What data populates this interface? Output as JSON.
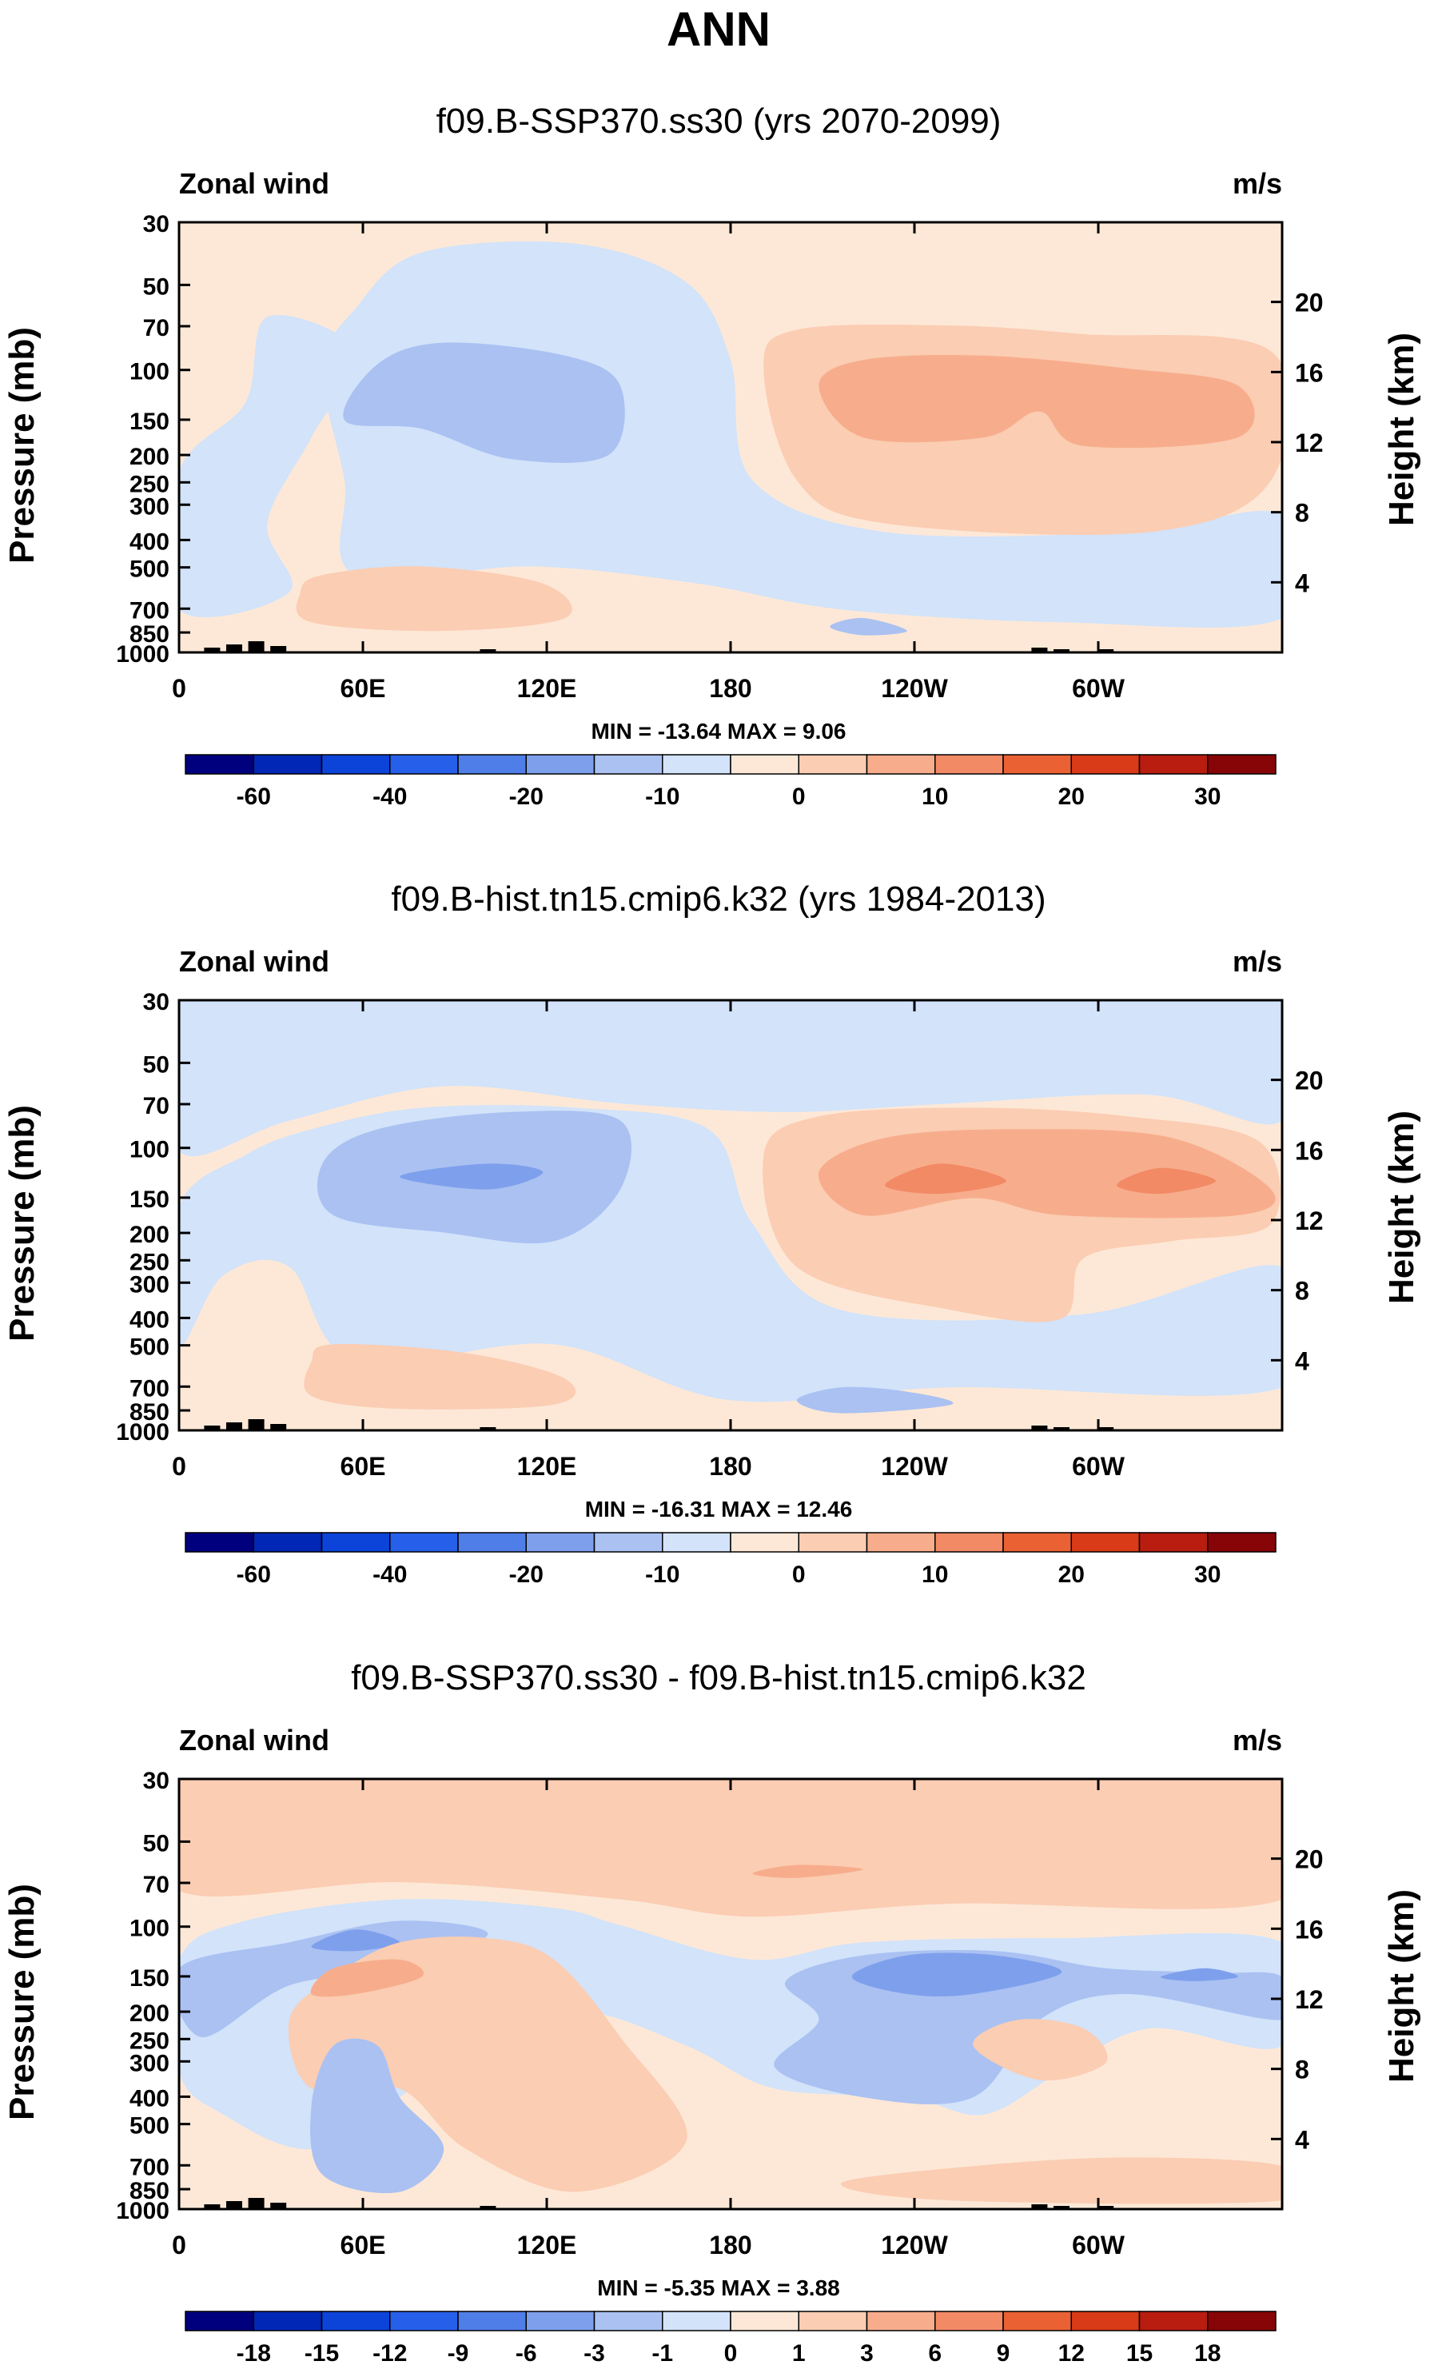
{
  "figure": {
    "title": "ANN"
  },
  "colors": {
    "palette": [
      "#00007f",
      "#0027b5",
      "#0c44d9",
      "#2660ea",
      "#4f7ee8",
      "#7ea0ec",
      "#aac1f2",
      "#d2e3fa",
      "#fde8d7",
      "#fbcdb3",
      "#f7ad8c",
      "#f28a66",
      "#ea6133",
      "#d93a17",
      "#b81d10",
      "#870506"
    ],
    "frame": "#000000"
  },
  "chart_data": [
    {
      "type": "heatmap",
      "title": "f09.B-SSP370.ss30 (yrs 2070-2099)",
      "label_left": "Zonal wind",
      "units": "m/s",
      "ylabel": "Pressure (mb)",
      "ylabel_right": "Height (km)",
      "x_ticks": [
        "0",
        "60E",
        "120E",
        "180",
        "120W",
        "60W"
      ],
      "y_ticks": [
        "30",
        "50",
        "70",
        "100",
        "150",
        "200",
        "250",
        "300",
        "400",
        "500",
        "700",
        "850",
        "1000"
      ],
      "y_ticks_right": [
        "20",
        "16",
        "12",
        "8",
        "4"
      ],
      "stats": "MIN = -13.64  MAX =  9.06",
      "colorbar_labels": [
        "-60",
        "-40",
        "-20",
        "-10",
        "0",
        "10",
        "20",
        "30"
      ],
      "min": -13.64,
      "max": 9.06
    },
    {
      "type": "heatmap",
      "title": "f09.B-hist.tn15.cmip6.k32 (yrs 1984-2013)",
      "label_left": "Zonal wind",
      "units": "m/s",
      "ylabel": "Pressure (mb)",
      "ylabel_right": "Height (km)",
      "x_ticks": [
        "0",
        "60E",
        "120E",
        "180",
        "120W",
        "60W"
      ],
      "y_ticks": [
        "30",
        "50",
        "70",
        "100",
        "150",
        "200",
        "250",
        "300",
        "400",
        "500",
        "700",
        "850",
        "1000"
      ],
      "y_ticks_right": [
        "20",
        "16",
        "12",
        "8",
        "4"
      ],
      "stats": "MIN = -16.31  MAX =  12.46",
      "colorbar_labels": [
        "-60",
        "-40",
        "-20",
        "-10",
        "0",
        "10",
        "20",
        "30"
      ],
      "min": -16.31,
      "max": 12.46
    },
    {
      "type": "heatmap",
      "title": "f09.B-SSP370.ss30 - f09.B-hist.tn15.cmip6.k32",
      "label_left": "Zonal wind",
      "units": "m/s",
      "ylabel": "Pressure (mb)",
      "ylabel_right": "Height (km)",
      "x_ticks": [
        "0",
        "60E",
        "120E",
        "180",
        "120W",
        "60W"
      ],
      "y_ticks": [
        "30",
        "50",
        "70",
        "100",
        "150",
        "200",
        "250",
        "300",
        "400",
        "500",
        "700",
        "850",
        "1000"
      ],
      "y_ticks_right": [
        "20",
        "16",
        "12",
        "8",
        "4"
      ],
      "stats": "MIN = -5.35  MAX =  3.88",
      "colorbar_labels": [
        "-18",
        "-15",
        "-12",
        "-9",
        "-6",
        "-3",
        "-1",
        "0",
        "1",
        "3",
        "6",
        "9",
        "12",
        "15",
        "18"
      ],
      "min": -5.35,
      "max": 3.88
    }
  ]
}
